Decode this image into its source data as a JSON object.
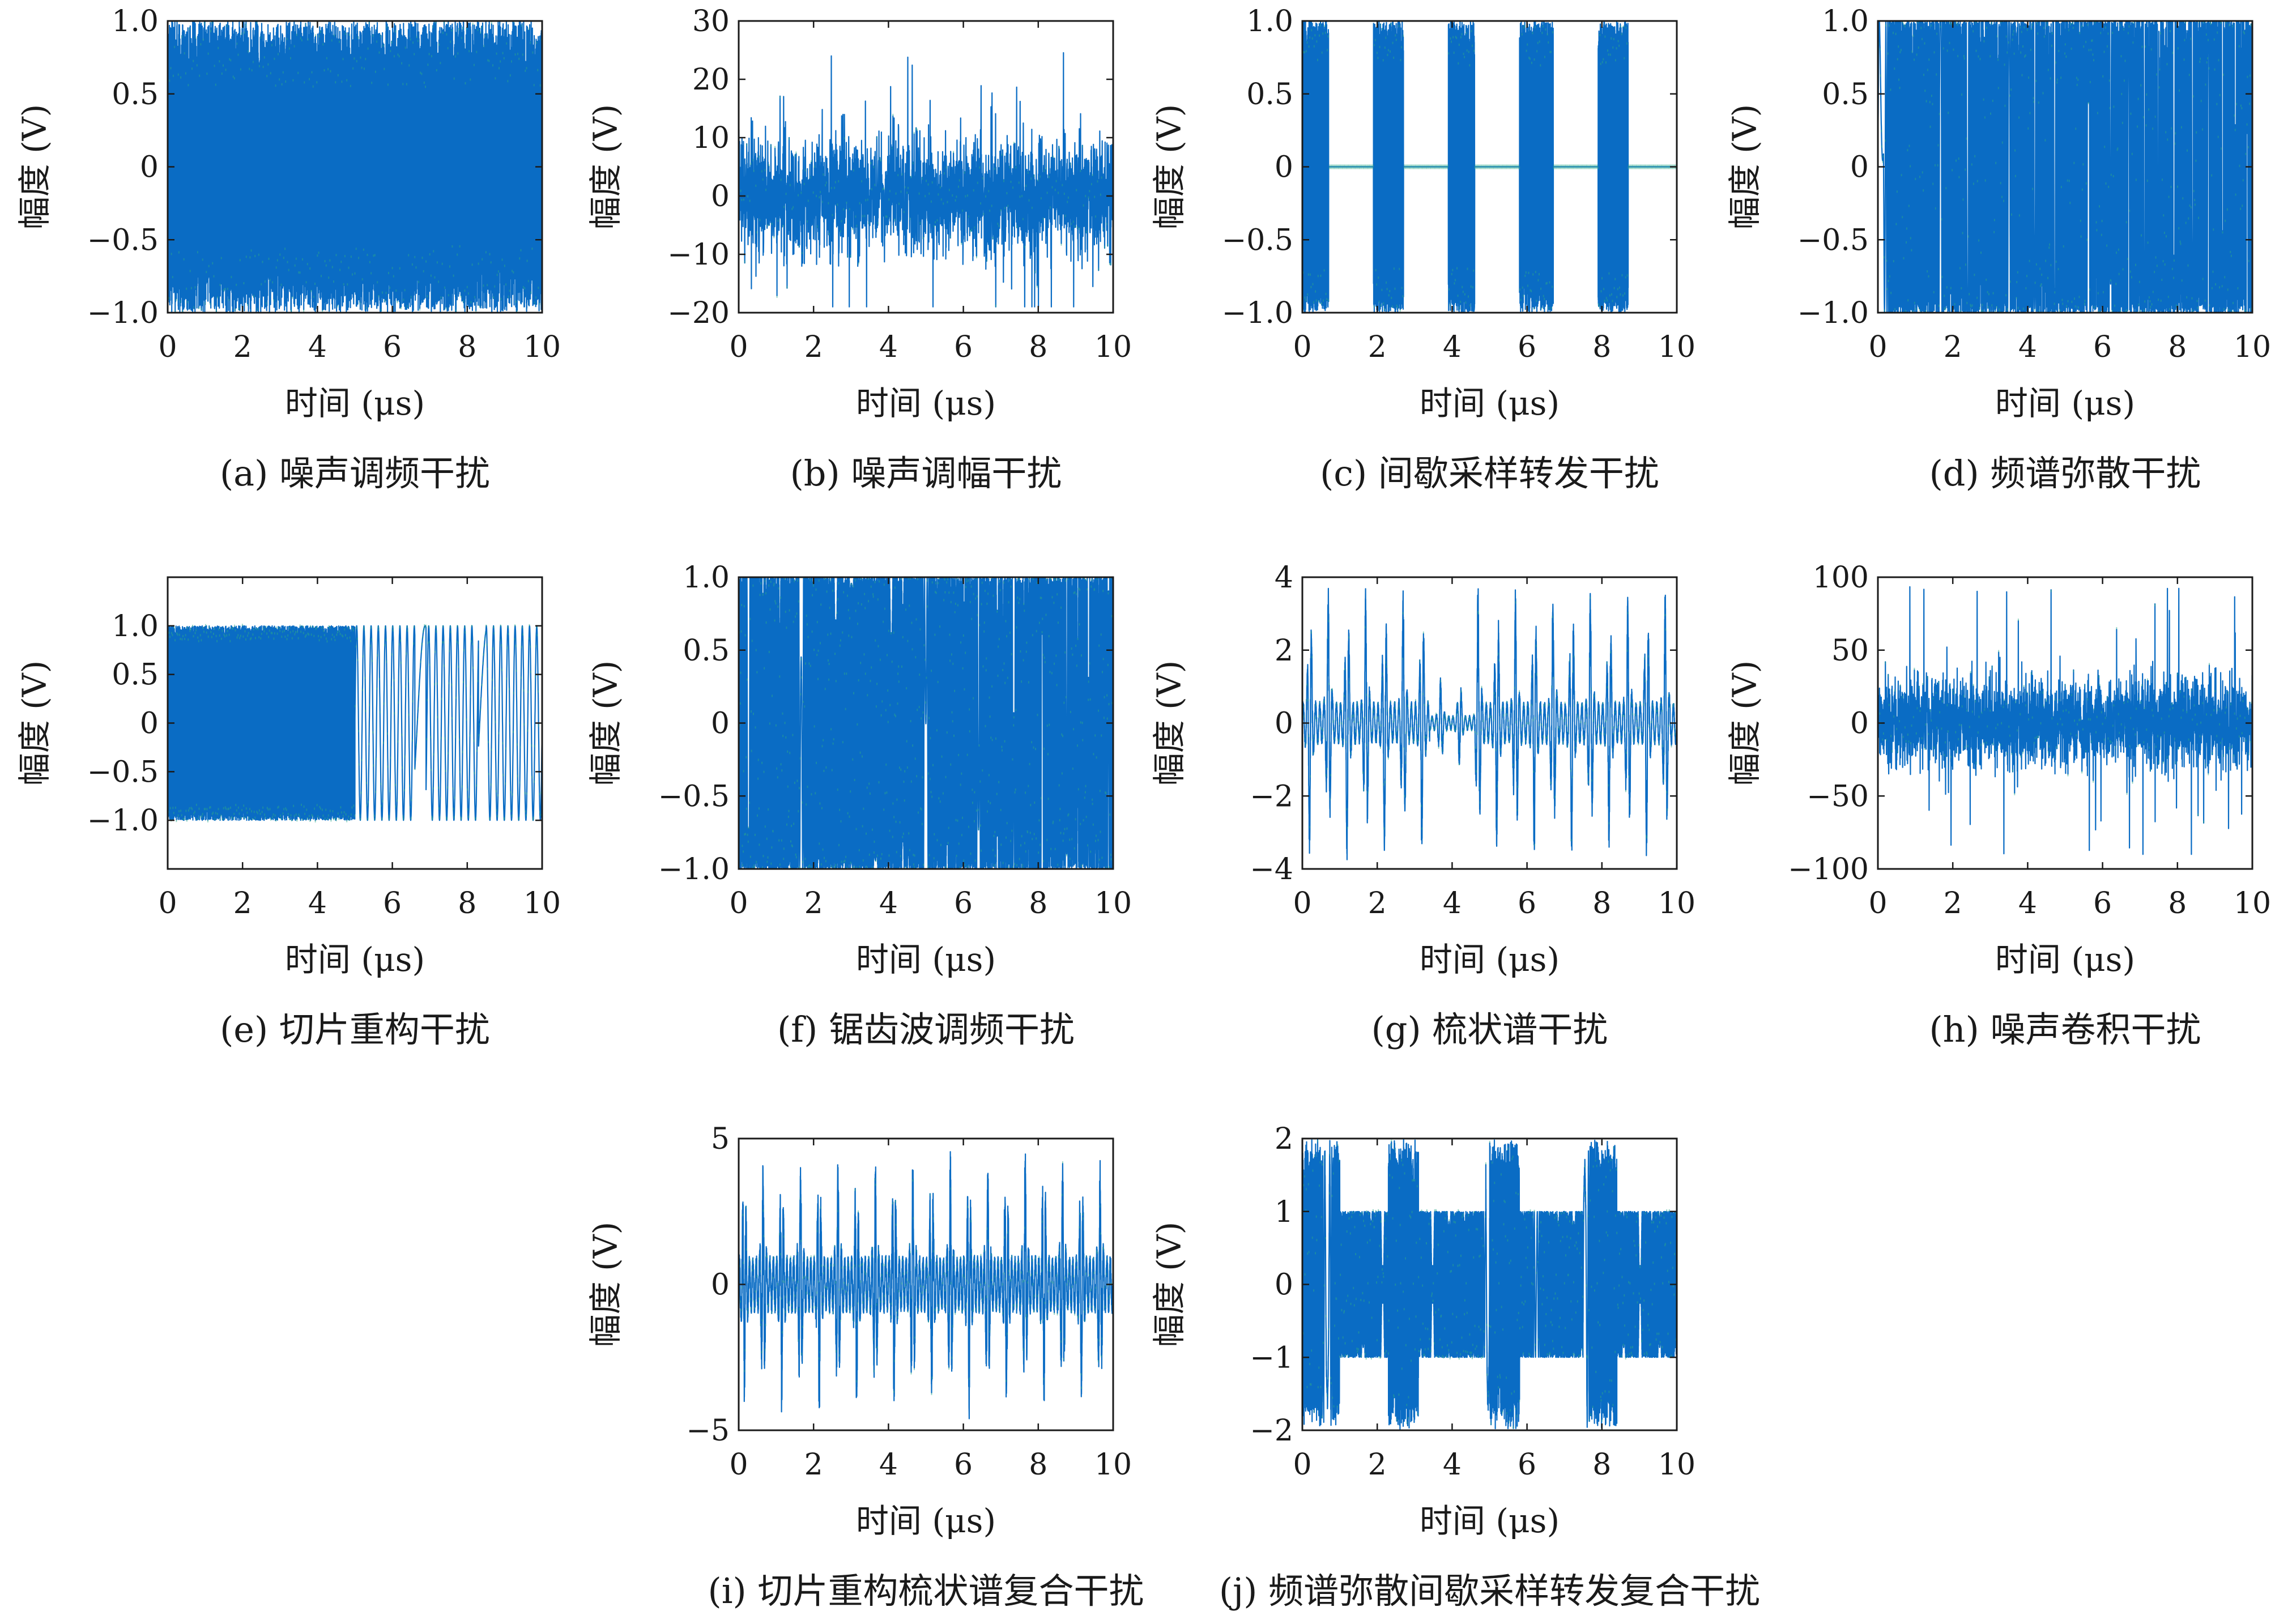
{
  "figure": {
    "accent_colors": {
      "signal": "#0a6cc4",
      "signal_light": "#4f97d6",
      "signal_green": "#2aa88a",
      "axis": "#1a1a1a"
    }
  },
  "chart_data": [
    {
      "id": "a",
      "type": "line",
      "pattern": "noise_fm",
      "caption": "(a) 噪声调频干扰",
      "xlabel": "时间 (μs)",
      "ylabel": "幅度 (V)",
      "xlim": [
        0,
        10
      ],
      "ylim": [
        -1.0,
        1.0
      ],
      "xticks": [
        0,
        2,
        4,
        6,
        8,
        10
      ],
      "xtick_labels": [
        "0",
        "2",
        "4",
        "6",
        "8",
        "10"
      ],
      "yticks": [
        1.0,
        0.5,
        0,
        -0.5,
        -1.0
      ],
      "ytick_labels": [
        "1.0",
        "0.5",
        "0",
        "−0.5",
        "−1.0"
      ],
      "series": [
        {
          "x_range": [
            0,
            10
          ],
          "amplitude_envelope": 1.0
        }
      ]
    },
    {
      "id": "b",
      "type": "line",
      "pattern": "noise_am",
      "caption": "(b) 噪声调幅干扰",
      "xlabel": "时间 (μs)",
      "ylabel": "幅度 (V)",
      "xlim": [
        0,
        10
      ],
      "ylim": [
        -20,
        30
      ],
      "xticks": [
        0,
        2,
        4,
        6,
        8,
        10
      ],
      "xtick_labels": [
        "0",
        "2",
        "4",
        "6",
        "8",
        "10"
      ],
      "yticks": [
        30,
        20,
        10,
        0,
        -10,
        -20
      ],
      "ytick_labels": [
        "30",
        "20",
        "10",
        "0",
        "−10",
        "−20"
      ],
      "series": [
        {
          "x_range": [
            0,
            10
          ],
          "center": 0,
          "spread": 6,
          "peak": 25
        }
      ]
    },
    {
      "id": "c",
      "type": "line",
      "pattern": "isrj",
      "caption": "(c) 间歇采样转发干扰",
      "xlabel": "时间 (μs)",
      "ylabel": "幅度 (V)",
      "xlim": [
        0,
        10
      ],
      "ylim": [
        -1.0,
        1.0
      ],
      "xticks": [
        0,
        2,
        4,
        6,
        8,
        10
      ],
      "xtick_labels": [
        "0",
        "2",
        "4",
        "6",
        "8",
        "10"
      ],
      "yticks": [
        1.0,
        0.5,
        0,
        -0.5,
        -1.0
      ],
      "ytick_labels": [
        "1.0",
        "0.5",
        "0",
        "−0.5",
        "−1.0"
      ],
      "series": [
        {
          "bursts": [
            [
              0,
              0.7
            ],
            [
              1.9,
              2.7
            ],
            [
              3.9,
              4.6
            ],
            [
              5.8,
              6.7
            ],
            [
              7.9,
              8.7
            ]
          ],
          "amplitude": 1.0
        }
      ]
    },
    {
      "id": "d",
      "type": "line",
      "pattern": "smsp",
      "caption": "(d) 频谱弥散干扰",
      "xlabel": "时间 (μs)",
      "ylabel": "幅度 (V)",
      "xlim": [
        0,
        10
      ],
      "ylim": [
        -1.0,
        1.0
      ],
      "xticks": [
        0,
        2,
        4,
        6,
        8,
        10
      ],
      "xtick_labels": [
        "0",
        "2",
        "4",
        "6",
        "8",
        "10"
      ],
      "yticks": [
        1.0,
        0.5,
        0,
        -0.5,
        -1.0
      ],
      "ytick_labels": [
        "1.0",
        "0.5",
        "0",
        "−0.5",
        "−1.0"
      ],
      "series": [
        {
          "sub_pulses": 4,
          "sub_pulse_period": 2.5,
          "amplitude": 1.0
        }
      ]
    },
    {
      "id": "e",
      "type": "line",
      "pattern": "slice",
      "caption": "(e) 切片重构干扰",
      "xlabel": "时间 (μs)",
      "ylabel": "幅度 (V)",
      "xlim": [
        0,
        10
      ],
      "ylim": [
        -1.5,
        1.5
      ],
      "xticks": [
        0,
        2,
        4,
        6,
        8,
        10
      ],
      "xtick_labels": [
        "0",
        "2",
        "4",
        "6",
        "8",
        "10"
      ],
      "yticks": [
        1.0,
        0.5,
        0,
        -0.5,
        -1.0
      ],
      "ytick_labels": [
        "1.0",
        "0.5",
        "0",
        "−0.5",
        "−1.0"
      ],
      "series": [
        {
          "dense_until": 5.0,
          "sparse_segments": [
            [
              5.2,
              6.6
            ],
            [
              6.9,
              8.3
            ],
            [
              8.5,
              10
            ]
          ],
          "amplitude": 1.0
        }
      ]
    },
    {
      "id": "f",
      "type": "line",
      "pattern": "sawtooth_fm",
      "caption": "(f) 锯齿波调频干扰",
      "xlabel": "时间 (μs)",
      "ylabel": "幅度 (V)",
      "xlim": [
        0,
        10
      ],
      "ylim": [
        -1.0,
        1.0
      ],
      "xticks": [
        0,
        2,
        4,
        6,
        8,
        10
      ],
      "xtick_labels": [
        "0",
        "2",
        "4",
        "6",
        "8",
        "10"
      ],
      "yticks": [
        1.0,
        0.5,
        0,
        -0.5,
        -1.0
      ],
      "ytick_labels": [
        "1.0",
        "0.5",
        "0",
        "−0.5",
        "−1.0"
      ],
      "series": [
        {
          "center_low_freq": 5.0,
          "amplitude": 1.0
        }
      ]
    },
    {
      "id": "g",
      "type": "line",
      "pattern": "comb",
      "caption": "(g) 梳状谱干扰",
      "xlabel": "时间 (μs)",
      "ylabel": "幅度 (V)",
      "xlim": [
        0,
        10
      ],
      "ylim": [
        -4,
        4
      ],
      "xticks": [
        0,
        2,
        4,
        6,
        8,
        10
      ],
      "xtick_labels": [
        "0",
        "2",
        "4",
        "6",
        "8",
        "10"
      ],
      "yticks": [
        4,
        2,
        0,
        -2,
        -4
      ],
      "ytick_labels": [
        "4",
        "2",
        "0",
        "−2",
        "−4"
      ],
      "series": [
        {
          "peak_period": 0.5,
          "peak_amplitude": 3.8,
          "base_amplitude": 0.6
        }
      ]
    },
    {
      "id": "h",
      "type": "line",
      "pattern": "noise_conv",
      "caption": "(h) 噪声卷积干扰",
      "xlabel": "时间 (μs)",
      "ylabel": "幅度 (V)",
      "xlim": [
        0,
        10
      ],
      "ylim": [
        -100,
        100
      ],
      "xticks": [
        0,
        2,
        4,
        6,
        8,
        10
      ],
      "xtick_labels": [
        "0",
        "2",
        "4",
        "6",
        "8",
        "10"
      ],
      "yticks": [
        100,
        50,
        0,
        -50,
        -100
      ],
      "ytick_labels": [
        "100",
        "50",
        "0",
        "−50",
        "−100"
      ],
      "series": [
        {
          "center": 0,
          "spread": 18,
          "peak": 95
        }
      ]
    },
    {
      "id": "i",
      "type": "line",
      "pattern": "slice_comb",
      "caption": "(i) 切片重构梳状谱复合干扰",
      "xlabel": "时间 (μs)",
      "ylabel": "幅度 (V)",
      "xlim": [
        0,
        10
      ],
      "ylim": [
        -5,
        5
      ],
      "xticks": [
        0,
        2,
        4,
        6,
        8,
        10
      ],
      "xtick_labels": [
        "0",
        "2",
        "4",
        "6",
        "8",
        "10"
      ],
      "yticks": [
        5,
        0,
        -5
      ],
      "ytick_labels": [
        "5",
        "0",
        "−5"
      ],
      "series": [
        {
          "peak_period": 0.5,
          "peak_amplitude": 4.8,
          "base_amplitude": 1.0
        }
      ]
    },
    {
      "id": "j",
      "type": "line",
      "pattern": "smsp_isrj",
      "caption": "(j) 频谱弥散间歇采样转发复合干扰",
      "xlabel": "时间 (μs)",
      "ylabel": "幅度 (V)",
      "xlim": [
        0,
        10
      ],
      "ylim": [
        -2,
        2
      ],
      "xticks": [
        0,
        2,
        4,
        6,
        8,
        10
      ],
      "xtick_labels": [
        "0",
        "2",
        "4",
        "6",
        "8",
        "10"
      ],
      "yticks": [
        2,
        1,
        0,
        -1,
        -2
      ],
      "ytick_labels": [
        "2",
        "1",
        "0",
        "−1",
        "−2"
      ],
      "series": [
        {
          "bursts": [
            [
              0,
              1.0
            ],
            [
              2.3,
              3.1
            ],
            [
              4.9,
              5.8
            ],
            [
              7.5,
              8.4
            ]
          ],
          "burst_amplitude": 2.0,
          "base_amplitude": 1.0
        }
      ]
    }
  ]
}
